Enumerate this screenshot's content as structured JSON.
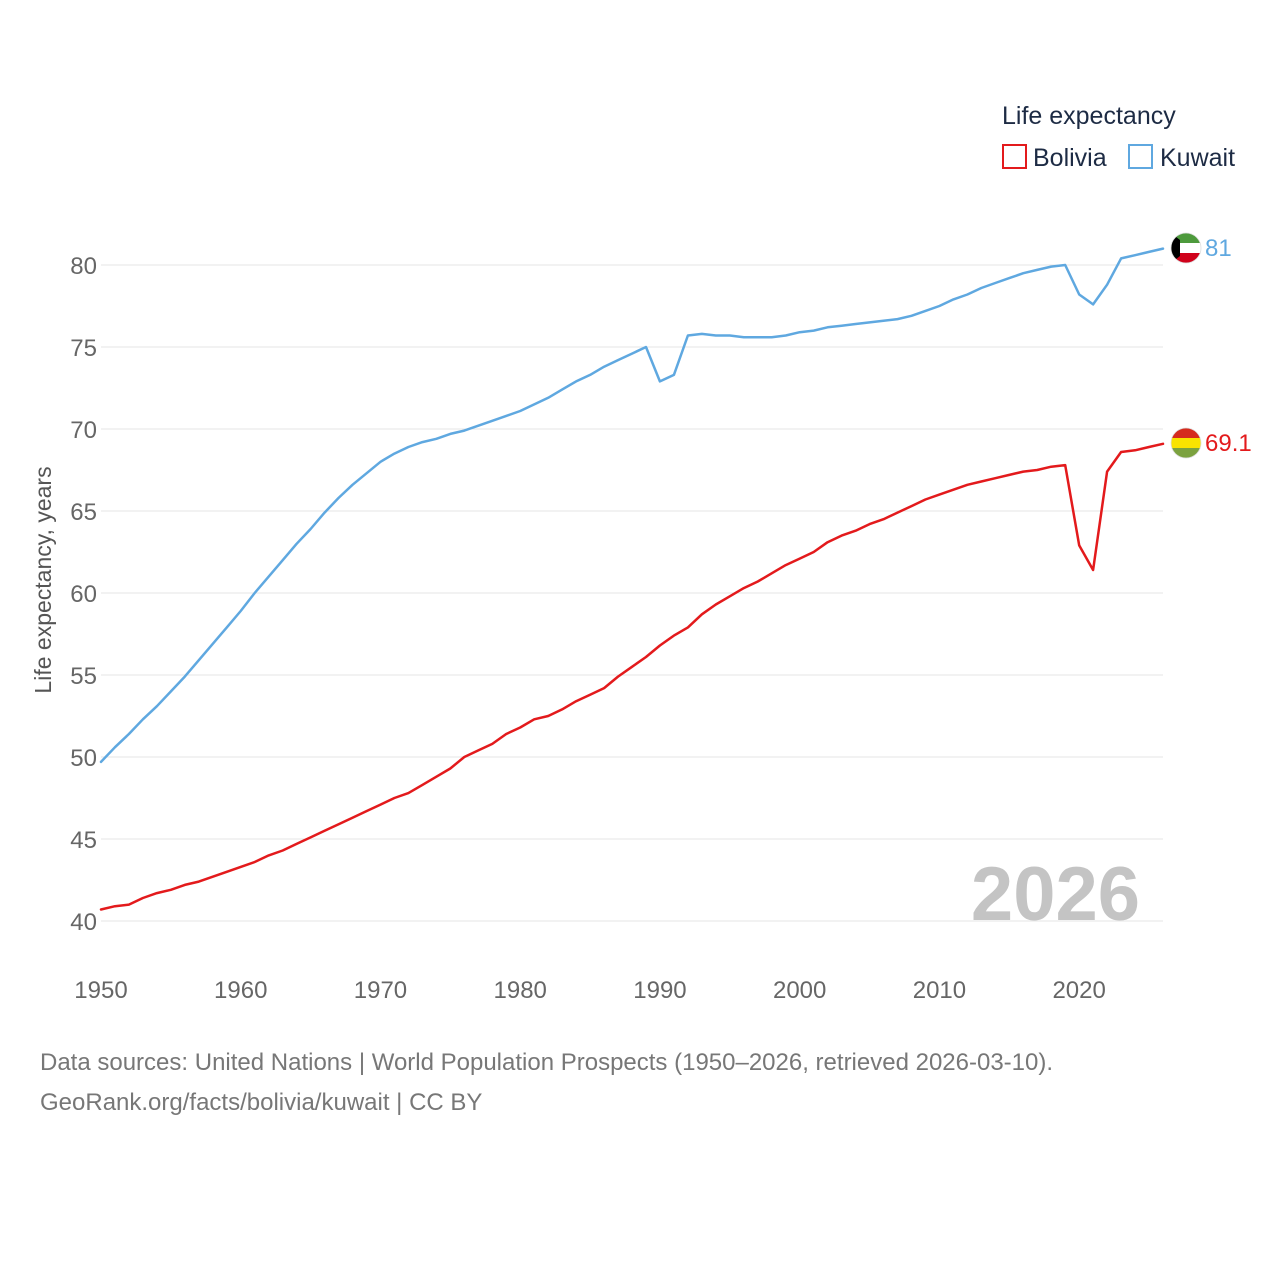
{
  "chart_data": {
    "type": "line",
    "legend_title": "Life expectancy",
    "ylabel": "Life expectancy, years",
    "xlabel": "",
    "xlim": [
      1950,
      2026
    ],
    "ylim": [
      40,
      80
    ],
    "yticks": [
      40,
      45,
      50,
      55,
      60,
      65,
      70,
      75,
      80
    ],
    "xticks": [
      1950,
      1960,
      1970,
      1980,
      1990,
      2000,
      2010,
      2020
    ],
    "current_year_label": "2026",
    "legend_position": "top-right",
    "x": [
      1950,
      1951,
      1952,
      1953,
      1954,
      1955,
      1956,
      1957,
      1958,
      1959,
      1960,
      1961,
      1962,
      1963,
      1964,
      1965,
      1966,
      1967,
      1968,
      1969,
      1970,
      1971,
      1972,
      1973,
      1974,
      1975,
      1976,
      1977,
      1978,
      1979,
      1980,
      1981,
      1982,
      1983,
      1984,
      1985,
      1986,
      1987,
      1988,
      1989,
      1990,
      1991,
      1992,
      1993,
      1994,
      1995,
      1996,
      1997,
      1998,
      1999,
      2000,
      2001,
      2002,
      2003,
      2004,
      2005,
      2006,
      2007,
      2008,
      2009,
      2010,
      2011,
      2012,
      2013,
      2014,
      2015,
      2016,
      2017,
      2018,
      2019,
      2020,
      2021,
      2022,
      2023,
      2024,
      2025,
      2026
    ],
    "series": [
      {
        "name": "Bolivia",
        "color": "#e31a1c",
        "end_label": "69.1",
        "values": [
          40.7,
          40.9,
          41.0,
          41.4,
          41.7,
          41.9,
          42.2,
          42.4,
          42.7,
          43.0,
          43.3,
          43.6,
          44.0,
          44.3,
          44.7,
          45.1,
          45.5,
          45.9,
          46.3,
          46.7,
          47.1,
          47.5,
          47.8,
          48.3,
          48.8,
          49.3,
          50.0,
          50.4,
          50.8,
          51.4,
          51.8,
          52.3,
          52.5,
          52.9,
          53.4,
          53.8,
          54.2,
          54.9,
          55.5,
          56.1,
          56.8,
          57.4,
          57.9,
          58.7,
          59.3,
          59.8,
          60.3,
          60.7,
          61.2,
          61.7,
          62.1,
          62.5,
          63.1,
          63.5,
          63.8,
          64.2,
          64.5,
          64.9,
          65.3,
          65.7,
          66.0,
          66.3,
          66.6,
          66.8,
          67.0,
          67.2,
          67.4,
          67.5,
          67.7,
          67.8,
          62.9,
          61.4,
          67.4,
          68.6,
          68.7,
          68.9,
          69.1
        ]
      },
      {
        "name": "Kuwait",
        "color": "#5fa8e0",
        "end_label": "81",
        "values": [
          49.7,
          50.6,
          51.4,
          52.3,
          53.1,
          54.0,
          54.9,
          55.9,
          56.9,
          57.9,
          58.9,
          60.0,
          61.0,
          62.0,
          63.0,
          63.9,
          64.9,
          65.8,
          66.6,
          67.3,
          68.0,
          68.5,
          68.9,
          69.2,
          69.4,
          69.7,
          69.9,
          70.2,
          70.5,
          70.8,
          71.1,
          71.5,
          71.9,
          72.4,
          72.9,
          73.3,
          73.8,
          74.2,
          74.6,
          75.0,
          72.9,
          73.3,
          75.7,
          75.8,
          75.7,
          75.7,
          75.6,
          75.6,
          75.6,
          75.7,
          75.9,
          76.0,
          76.2,
          76.3,
          76.4,
          76.5,
          76.6,
          76.7,
          76.9,
          77.2,
          77.5,
          77.9,
          78.2,
          78.6,
          78.9,
          79.2,
          79.5,
          79.7,
          79.9,
          80.0,
          78.2,
          77.6,
          78.8,
          80.4,
          80.6,
          80.8,
          81.0
        ]
      }
    ]
  },
  "source": {
    "line1": "Data sources: United Nations | World Population Prospects (1950–2026, retrieved 2026-03-10).",
    "line2": "GeoRank.org/facts/bolivia/kuwait | CC BY"
  },
  "colors": {
    "grid": "#e6e6e6",
    "tick_text": "#666666",
    "watermark": "#c4c4c4",
    "legend_text": "#1d2b44"
  },
  "icons": {
    "bolivia_marker": "bolivia-flag-icon",
    "kuwait_marker": "kuwait-flag-icon"
  }
}
